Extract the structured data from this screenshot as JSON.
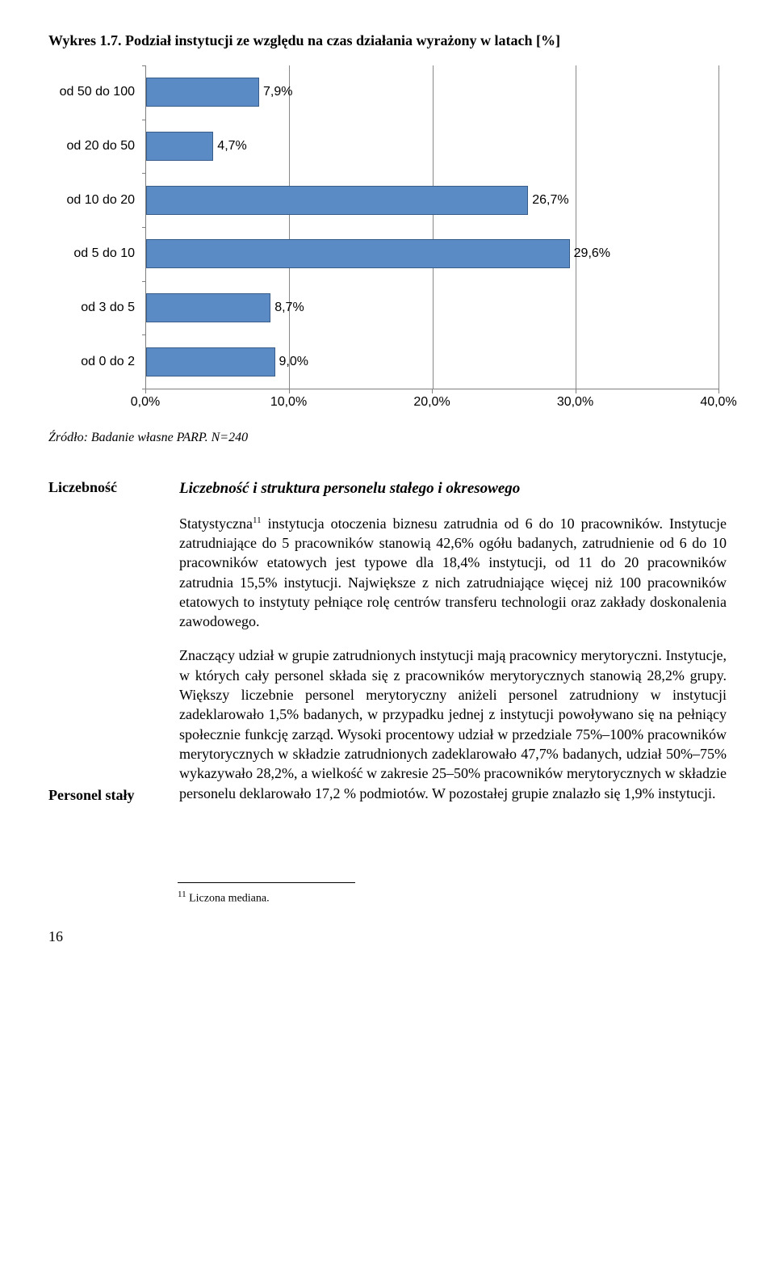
{
  "chart": {
    "type": "bar-horizontal",
    "title": "Wykres 1.7. Podział instytucji ze względu na czas działania wyrażony w latach [%]",
    "categories": [
      "od 50 do 100",
      "od 20 do 50",
      "od 10 do 20",
      "od 5 do 10",
      "od 3 do 5",
      "od 0 do 2"
    ],
    "value_labels": [
      "7,9%",
      "4,7%",
      "26,7%",
      "29,6%",
      "8,7%",
      "9,0%"
    ],
    "values": [
      7.9,
      4.7,
      26.7,
      29.6,
      8.7,
      9.0
    ],
    "xticks": [
      0,
      10,
      20,
      30,
      40
    ],
    "xtick_labels": [
      "0,0%",
      "10,0%",
      "20,0%",
      "30,0%",
      "40,0%"
    ],
    "xmax": 40,
    "bar_color": "#5b8bc5",
    "bar_border": "#385d8a",
    "grid_color": "#888888",
    "axis_color": "#7f7f7f",
    "label_fontsize": 16,
    "title_fontsize": 18
  },
  "source": "Źródło: Badanie własne PARP. N=240",
  "side": {
    "h1": "Liczebność",
    "h2": "Personel stały"
  },
  "subhead": "Liczebność i struktura personelu stałego i okresowego",
  "para1a": "Statystyczna",
  "para1_sup": "11",
  "para1b": " instytucja otoczenia biznesu zatrudnia od 6 do 10 pracowników. Instytucje zatrudniające do 5 pracowników stanowią 42,6% ogółu badanych, zatrudnienie od 6 do 10 pracowników etatowych jest typowe dla 18,4% instytucji, od 11 do 20 pracowników zatrudnia 15,5% instytucji. Największe z nich zatrudniające więcej niż 100 pracowników etatowych to instytuty pełniące rolę centrów transferu technologii oraz zakłady doskonalenia zawodowego.",
  "para2": "Znaczący udział w grupie zatrudnionych instytucji mają pracownicy merytoryczni. Instytucje, w których cały personel składa się z pracowników merytorycznych stanowią 28,2% grupy. Większy liczebnie personel merytoryczny aniżeli personel zatrudniony w instytucji zadeklarowało 1,5% badanych, w przypadku jednej z instytucji powoływano się na pełniący społecznie funkcję zarząd. Wysoki procentowy udział w przedziale 75%–100% pracowników merytorycznych w składzie zatrudnionych zadeklarowało 47,7% badanych, udział 50%–75% wykazywało 28,2%, a wielkość w zakresie 25–50% pracowników merytorycznych w składzie personelu deklarowało 17,2 % podmiotów. W pozostałej grupie znalazło się 1,9% instytucji.",
  "footnote_sup": "11",
  "footnote": " Liczona mediana.",
  "page": "16"
}
